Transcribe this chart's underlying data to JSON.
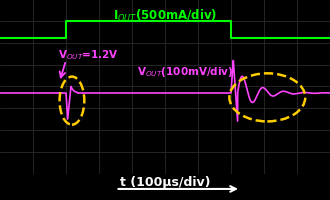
{
  "bg_color": "#000000",
  "grid_color": "#2a2a2a",
  "iout_color": "#00ff00",
  "vout_color": "#ff44ff",
  "ellipse_color": "#ffcc00",
  "white": "#ffffff",
  "iout_label": "I$_{OUT}$(500mA/div)",
  "vout_label": "V$_{OUT}$(100mV/div)",
  "vout_eq_label": "V$_{OUT}$=1.2V",
  "xlabel": "t (100μs/div)",
  "figsize": [
    3.3,
    2.01
  ],
  "dpi": 100,
  "xlim": [
    0,
    10
  ],
  "ylim": [
    -4,
    4
  ],
  "iout_base": 2.2,
  "iout_high": 3.0,
  "iout_rise": 2.0,
  "iout_fall": 7.0,
  "vout_base": -0.3
}
